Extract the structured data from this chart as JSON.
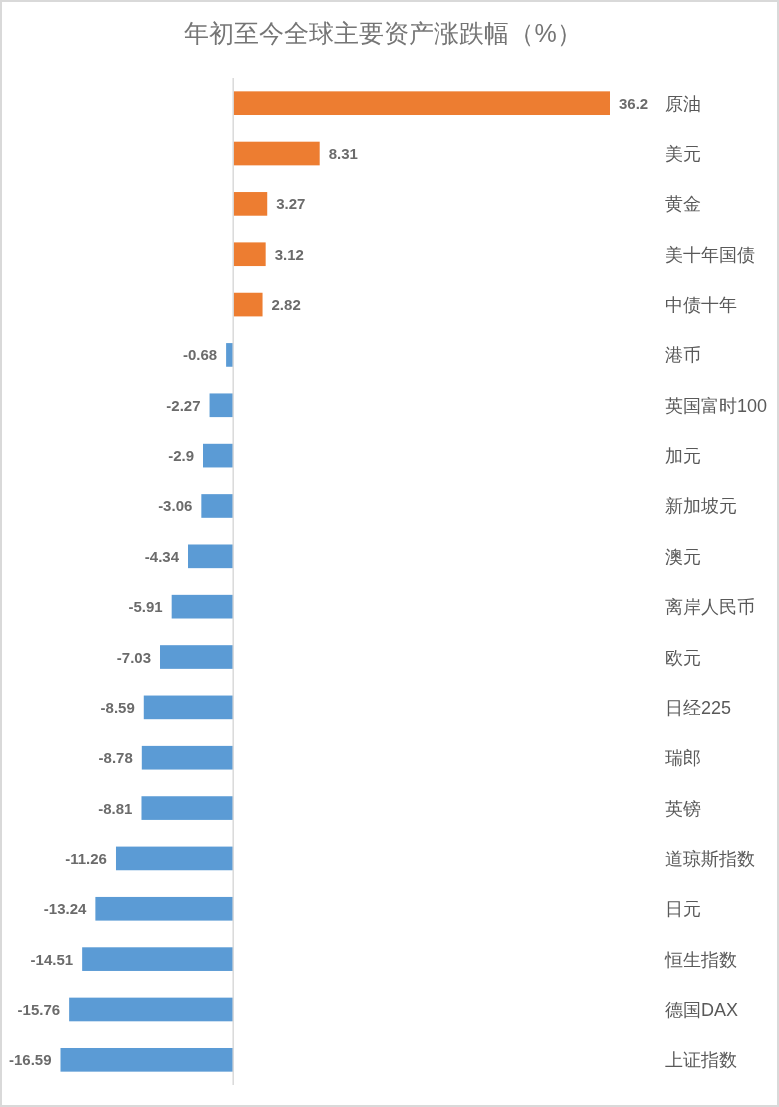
{
  "chart_data": {
    "type": "bar",
    "orientation": "horizontal",
    "title": "年初至今全球主要资产涨跌幅（%）",
    "categories": [
      "原油",
      "美元",
      "黄金",
      "美十年国债",
      "中债十年",
      "港币",
      "英国富时100",
      "加元",
      "新加坡元",
      "澳元",
      "离岸人民币",
      "欧元",
      "日经225",
      "瑞郎",
      "英镑",
      "道琼斯指数",
      "日元",
      "恒生指数",
      "德国DAX",
      "上证指数"
    ],
    "values": [
      36.2,
      8.31,
      3.27,
      3.12,
      2.82,
      -0.68,
      -2.27,
      -2.9,
      -3.06,
      -4.34,
      -5.91,
      -7.03,
      -8.59,
      -8.78,
      -8.81,
      -11.26,
      -13.24,
      -14.51,
      -15.76,
      -16.59
    ],
    "colors": [
      "#ed7d31",
      "#ed7d31",
      "#ed7d31",
      "#ed7d31",
      "#ed7d31",
      "#5b9bd5",
      "#5b9bd5",
      "#5b9bd5",
      "#5b9bd5",
      "#5b9bd5",
      "#5b9bd5",
      "#5b9bd5",
      "#5b9bd5",
      "#5b9bd5",
      "#5b9bd5",
      "#5b9bd5",
      "#5b9bd5",
      "#5b9bd5",
      "#5b9bd5",
      "#5b9bd5"
    ],
    "data_labels": true
  }
}
